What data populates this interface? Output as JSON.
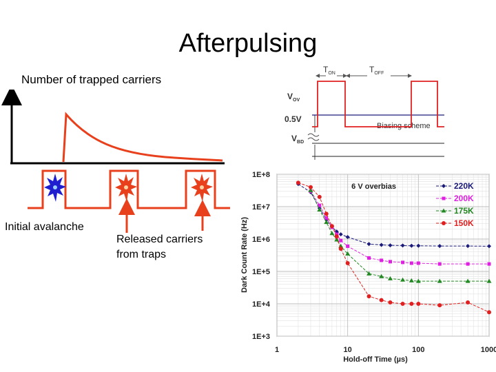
{
  "slide": {
    "title": "Afterpulsing",
    "trapped_label": "Number of trapped carriers",
    "initial_label": "Initial avalanche",
    "released_label_line1": "Released carriers",
    "released_label_line2": "from traps"
  },
  "biasing": {
    "caption": "Biasing scheme",
    "t_on": "T",
    "t_on_sub": "ON",
    "t_off": "T",
    "t_off_sub": "OFF",
    "v_ov": "V",
    "v_ov_sub": "OV",
    "v_half": "0.5V",
    "v_bd": "V",
    "v_bd_sub": "BD"
  },
  "colors": {
    "red": "#e8401c",
    "blue": "#1f1fd0",
    "navy": "#1a1a7a",
    "magenta": "#e020e0",
    "green": "#228822",
    "darkred": "#e02020"
  },
  "chart_data": {
    "type": "line",
    "xscale": "log",
    "yscale": "log",
    "annotation": "6 V overbias",
    "xlabel": "Hold-off Time (µs)",
    "ylabel": "Dark Count Rate (Hz)",
    "xlim": [
      1,
      1000
    ],
    "ylim": [
      1000,
      100000000
    ],
    "xticks": [
      {
        "v": 1,
        "label": "1"
      },
      {
        "v": 10,
        "label": "10"
      },
      {
        "v": 100,
        "label": "100"
      },
      {
        "v": 1000,
        "label": "1000"
      }
    ],
    "yticks": [
      {
        "v": 1000,
        "label": "1E+3"
      },
      {
        "v": 10000,
        "label": "1E+4"
      },
      {
        "v": 100000,
        "label": "1E+5"
      },
      {
        "v": 1000000,
        "label": "1E+6"
      },
      {
        "v": 10000000,
        "label": "1E+7"
      },
      {
        "v": 100000000,
        "label": "1E+8"
      }
    ],
    "series": [
      {
        "name": "220K",
        "color": "#1a1a7a",
        "marker": "diamond",
        "x": [
          2,
          3,
          4,
          5,
          6,
          7,
          8,
          10,
          20,
          30,
          40,
          60,
          80,
          100,
          200,
          500,
          1000
        ],
        "y": [
          50000000,
          28000000,
          9000000,
          4000000,
          2400000,
          1700000,
          1400000,
          1150000,
          700000,
          660000,
          640000,
          630000,
          620000,
          620000,
          610000,
          610000,
          600000
        ]
      },
      {
        "name": "200K",
        "color": "#e020e0",
        "marker": "square",
        "x": [
          3,
          4,
          5,
          6,
          7,
          8,
          10,
          20,
          30,
          40,
          60,
          80,
          100,
          200,
          500,
          1000
        ],
        "y": [
          30000000,
          11000000,
          4500000,
          2300000,
          1400000,
          900000,
          600000,
          260000,
          220000,
          200000,
          190000,
          180000,
          180000,
          170000,
          170000,
          170000
        ]
      },
      {
        "name": "175K",
        "color": "#228822",
        "marker": "triangle",
        "x": [
          3,
          4,
          5,
          6,
          7,
          8,
          10,
          20,
          30,
          40,
          60,
          80,
          100,
          200,
          500,
          1000
        ],
        "y": [
          32000000,
          8000000,
          3300000,
          1500000,
          950000,
          600000,
          350000,
          85000,
          70000,
          60000,
          55000,
          52000,
          50000,
          50000,
          50000,
          50000
        ]
      },
      {
        "name": "150K",
        "color": "#e02020",
        "marker": "circle",
        "x": [
          2,
          3,
          4,
          5,
          6,
          7,
          8,
          10,
          20,
          30,
          40,
          60,
          80,
          100,
          200,
          500,
          1000
        ],
        "y": [
          55000000,
          40000000,
          20000000,
          6000000,
          2500000,
          1200000,
          500000,
          180000,
          17000,
          13000,
          11000,
          10000,
          10000,
          10000,
          9000,
          11000,
          5500
        ]
      }
    ]
  }
}
